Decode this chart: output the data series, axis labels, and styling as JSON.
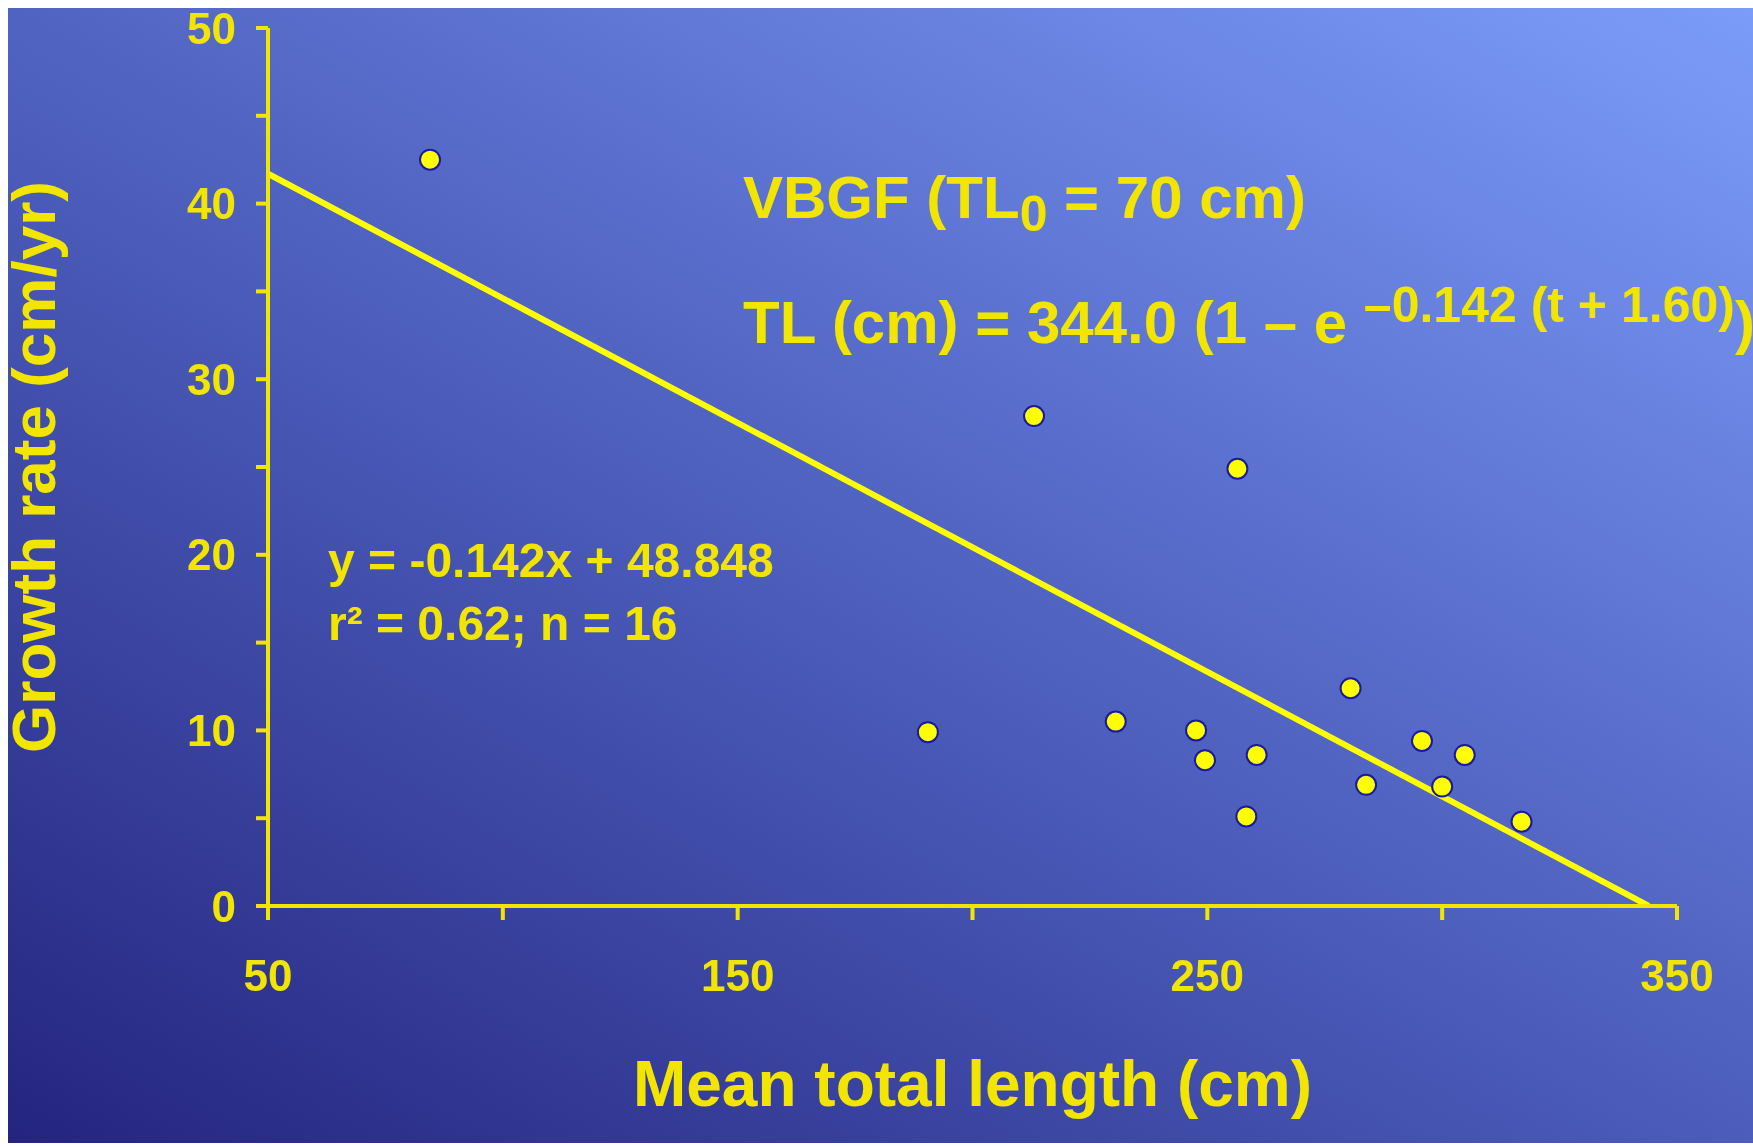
{
  "chart_data": {
    "type": "scatter",
    "xlabel": "Mean total length (cm)",
    "ylabel": "Growth rate (cm/yr)",
    "xlim": [
      50,
      350
    ],
    "xticks": [
      50,
      {
        "value": 100,
        "label": null
      },
      150,
      {
        "value": 200,
        "label": null
      },
      250,
      {
        "value": 300,
        "label": null
      },
      350
    ],
    "ylim": [
      0,
      50
    ],
    "yticks": [
      0,
      {
        "value": 5,
        "label": null
      },
      10,
      {
        "value": 15,
        "label": null
      },
      20,
      {
        "value": 25,
        "label": null
      },
      30,
      {
        "value": 35,
        "label": null
      },
      40,
      {
        "value": 45,
        "label": null
      },
      50
    ],
    "grid": false,
    "legend": false,
    "series": [
      {
        "color": "#ffff00",
        "marker": "circle",
        "x": [
          84.5,
          213.1,
          190.5,
          230.5,
          247.6,
          249.5,
          256.4,
          258.3,
          260.5,
          280.5,
          283.8,
          295.7,
          300,
          304.8,
          316.9
        ],
        "values": [
          42.5,
          27.9,
          9.9,
          10.5,
          10.0,
          8.3,
          24.9,
          5.1,
          8.6,
          12.4,
          6.9,
          9.4,
          6.8,
          8.6,
          4.8
        ]
      },
      {
        "type": "line",
        "color": "#ffff00",
        "marker": "none",
        "line_style": "solid",
        "x": [
          50,
          344
        ],
        "values": [
          41.7,
          0
        ]
      }
    ],
    "annotations": [
      "VBGF (TL$_{0}$ = 70 cm)",
      "TL (cm) = 344.0 (1 – e $^{–0.142 (t + 1.60)}$)",
      "y = -0.142x + 48.848",
      "r² = 0.62; n = 16"
    ]
  }
}
